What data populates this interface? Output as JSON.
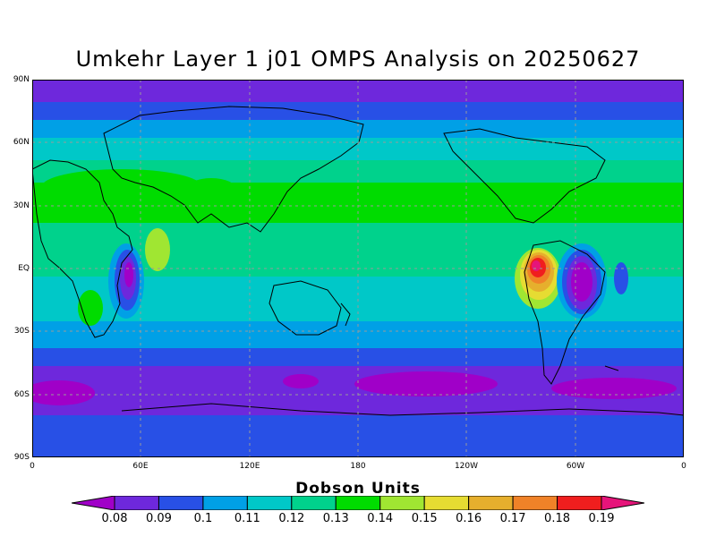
{
  "title": "Umkehr Layer 1 j01 OMPS Analysis on 20250627",
  "axes": {
    "y_ticks": [
      "90N",
      "60N",
      "30N",
      "EQ",
      "30S",
      "60S",
      "90S"
    ],
    "x_ticks": [
      "0",
      "60E",
      "120E",
      "180",
      "120W",
      "60W",
      "0"
    ]
  },
  "legend": {
    "title": "Dobson Units",
    "levels": [
      "0.08",
      "0.09",
      "0.1",
      "0.11",
      "0.12",
      "0.13",
      "0.14",
      "0.15",
      "0.16",
      "0.17",
      "0.18",
      "0.19"
    ],
    "colors": [
      "#a000c8",
      "#6e28dc",
      "#2850e6",
      "#00a0e6",
      "#00c8c8",
      "#00d28c",
      "#00dc00",
      "#a0e632",
      "#e6dc32",
      "#e6af2d",
      "#f08228",
      "#f01e1e",
      "#e6147a"
    ]
  }
}
